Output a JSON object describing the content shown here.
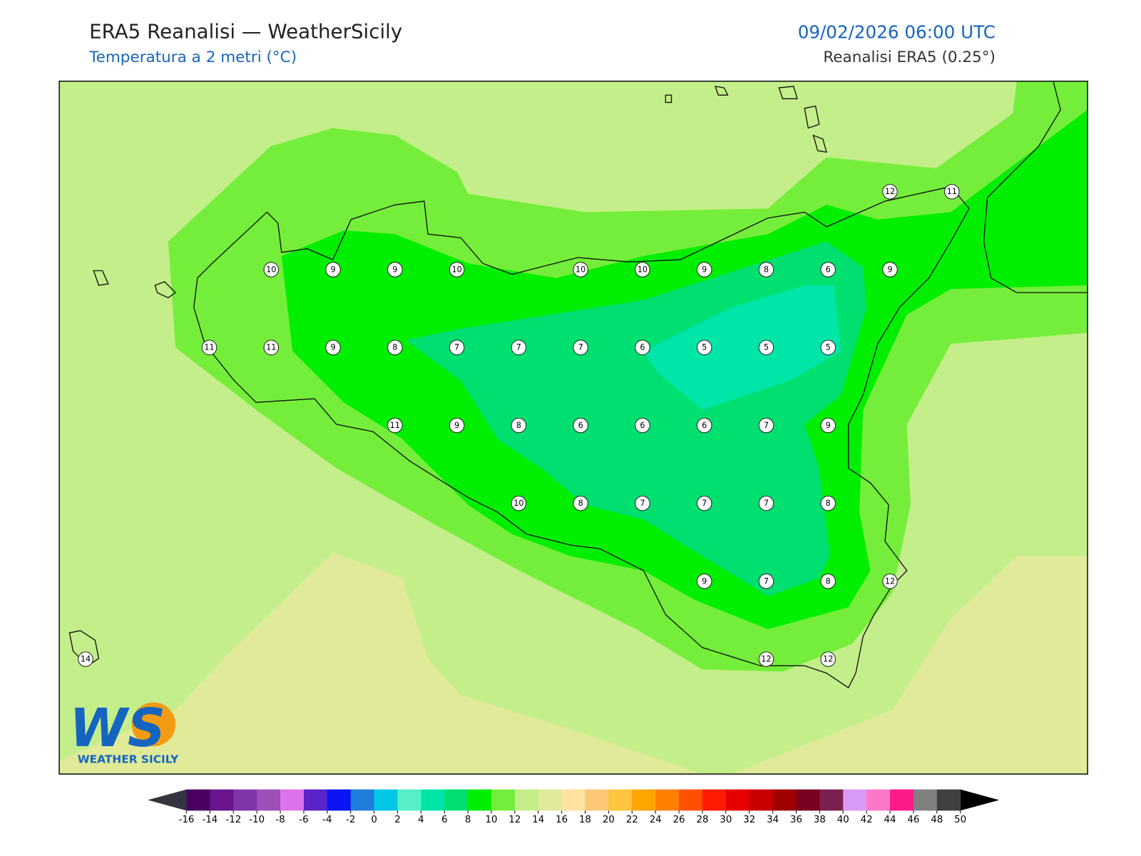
{
  "header": {
    "title": "ERA5 Reanalisi — WeatherSicily",
    "subtitle": "Temperatura a 2 metri (°C)",
    "datetime": "09/02/2026 06:00 UTC",
    "source": "Reanalisi ERA5 (0.25°)"
  },
  "map": {
    "grid": [
      [
        null,
        null,
        null,
        null,
        null,
        null,
        null,
        null,
        null,
        null,
        null,
        null,
        null,
        12,
        11
      ],
      [
        null,
        null,
        null,
        10,
        9,
        9,
        10,
        null,
        10,
        10,
        9,
        8,
        6,
        9,
        null
      ],
      [
        null,
        null,
        11,
        11,
        9,
        8,
        7,
        7,
        7,
        6,
        5,
        5,
        5,
        null,
        null
      ],
      [
        null,
        null,
        null,
        null,
        null,
        11,
        9,
        8,
        6,
        6,
        6,
        7,
        9,
        null,
        null
      ],
      [
        null,
        null,
        null,
        null,
        null,
        null,
        null,
        10,
        8,
        7,
        7,
        7,
        8,
        null,
        null
      ],
      [
        null,
        null,
        null,
        null,
        null,
        null,
        null,
        null,
        null,
        null,
        9,
        7,
        8,
        12,
        null
      ],
      [
        14,
        null,
        null,
        null,
        null,
        null,
        null,
        null,
        null,
        null,
        null,
        12,
        12,
        null,
        null
      ]
    ]
  },
  "colorbar": {
    "ticks": [
      -16,
      -14,
      -12,
      -10,
      -8,
      -6,
      -4,
      -2,
      0,
      2,
      4,
      6,
      8,
      10,
      12,
      14,
      16,
      18,
      20,
      22,
      24,
      26,
      28,
      30,
      32,
      34,
      36,
      38,
      40,
      42,
      44,
      46,
      48,
      50
    ],
    "colors": [
      "#4a0060",
      "#6a158c",
      "#7f35a8",
      "#9d4fba",
      "#dd73ea",
      "#5a23c8",
      "#0a14f5",
      "#1f7ddc",
      "#00c8e6",
      "#56efc8",
      "#00e6a8",
      "#00e070",
      "#00ee00",
      "#74ee3a",
      "#c4ee8a",
      "#e0ea98",
      "#ffe3a0",
      "#fcc878",
      "#fdc43e",
      "#ffa500",
      "#ff8000",
      "#ff5000",
      "#ff1a00",
      "#e60000",
      "#c80000",
      "#a00000",
      "#7a0020",
      "#7a2050",
      "#d89af5",
      "#ff78c8",
      "#ff1a8c",
      "#808080",
      "#404040"
    ],
    "under_color": "#34343f",
    "over_color": "#000000"
  },
  "logo": {
    "mark": "WS",
    "text": "WEATHER SICILY"
  }
}
